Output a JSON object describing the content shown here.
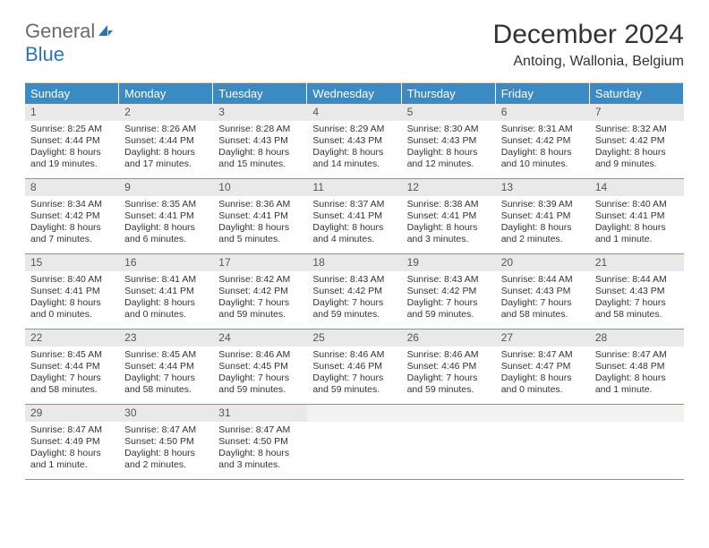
{
  "logo": {
    "general": "General",
    "blue": "Blue"
  },
  "title": "December 2024",
  "location": "Antoing, Wallonia, Belgium",
  "colors": {
    "header_bg": "#3b8ac4",
    "header_text": "#ffffff",
    "daynum_bg": "#e9e9e9",
    "row_divider": "#6b9bc2",
    "logo_blue": "#2e74b5",
    "text": "#333333",
    "background": "#ffffff"
  },
  "days_of_week": [
    "Sunday",
    "Monday",
    "Tuesday",
    "Wednesday",
    "Thursday",
    "Friday",
    "Saturday"
  ],
  "weeks": [
    [
      {
        "n": "1",
        "sr": "Sunrise: 8:25 AM",
        "ss": "Sunset: 4:44 PM",
        "dl1": "Daylight: 8 hours",
        "dl2": "and 19 minutes."
      },
      {
        "n": "2",
        "sr": "Sunrise: 8:26 AM",
        "ss": "Sunset: 4:44 PM",
        "dl1": "Daylight: 8 hours",
        "dl2": "and 17 minutes."
      },
      {
        "n": "3",
        "sr": "Sunrise: 8:28 AM",
        "ss": "Sunset: 4:43 PM",
        "dl1": "Daylight: 8 hours",
        "dl2": "and 15 minutes."
      },
      {
        "n": "4",
        "sr": "Sunrise: 8:29 AM",
        "ss": "Sunset: 4:43 PM",
        "dl1": "Daylight: 8 hours",
        "dl2": "and 14 minutes."
      },
      {
        "n": "5",
        "sr": "Sunrise: 8:30 AM",
        "ss": "Sunset: 4:43 PM",
        "dl1": "Daylight: 8 hours",
        "dl2": "and 12 minutes."
      },
      {
        "n": "6",
        "sr": "Sunrise: 8:31 AM",
        "ss": "Sunset: 4:42 PM",
        "dl1": "Daylight: 8 hours",
        "dl2": "and 10 minutes."
      },
      {
        "n": "7",
        "sr": "Sunrise: 8:32 AM",
        "ss": "Sunset: 4:42 PM",
        "dl1": "Daylight: 8 hours",
        "dl2": "and 9 minutes."
      }
    ],
    [
      {
        "n": "8",
        "sr": "Sunrise: 8:34 AM",
        "ss": "Sunset: 4:42 PM",
        "dl1": "Daylight: 8 hours",
        "dl2": "and 7 minutes."
      },
      {
        "n": "9",
        "sr": "Sunrise: 8:35 AM",
        "ss": "Sunset: 4:41 PM",
        "dl1": "Daylight: 8 hours",
        "dl2": "and 6 minutes."
      },
      {
        "n": "10",
        "sr": "Sunrise: 8:36 AM",
        "ss": "Sunset: 4:41 PM",
        "dl1": "Daylight: 8 hours",
        "dl2": "and 5 minutes."
      },
      {
        "n": "11",
        "sr": "Sunrise: 8:37 AM",
        "ss": "Sunset: 4:41 PM",
        "dl1": "Daylight: 8 hours",
        "dl2": "and 4 minutes."
      },
      {
        "n": "12",
        "sr": "Sunrise: 8:38 AM",
        "ss": "Sunset: 4:41 PM",
        "dl1": "Daylight: 8 hours",
        "dl2": "and 3 minutes."
      },
      {
        "n": "13",
        "sr": "Sunrise: 8:39 AM",
        "ss": "Sunset: 4:41 PM",
        "dl1": "Daylight: 8 hours",
        "dl2": "and 2 minutes."
      },
      {
        "n": "14",
        "sr": "Sunrise: 8:40 AM",
        "ss": "Sunset: 4:41 PM",
        "dl1": "Daylight: 8 hours",
        "dl2": "and 1 minute."
      }
    ],
    [
      {
        "n": "15",
        "sr": "Sunrise: 8:40 AM",
        "ss": "Sunset: 4:41 PM",
        "dl1": "Daylight: 8 hours",
        "dl2": "and 0 minutes."
      },
      {
        "n": "16",
        "sr": "Sunrise: 8:41 AM",
        "ss": "Sunset: 4:41 PM",
        "dl1": "Daylight: 8 hours",
        "dl2": "and 0 minutes."
      },
      {
        "n": "17",
        "sr": "Sunrise: 8:42 AM",
        "ss": "Sunset: 4:42 PM",
        "dl1": "Daylight: 7 hours",
        "dl2": "and 59 minutes."
      },
      {
        "n": "18",
        "sr": "Sunrise: 8:43 AM",
        "ss": "Sunset: 4:42 PM",
        "dl1": "Daylight: 7 hours",
        "dl2": "and 59 minutes."
      },
      {
        "n": "19",
        "sr": "Sunrise: 8:43 AM",
        "ss": "Sunset: 4:42 PM",
        "dl1": "Daylight: 7 hours",
        "dl2": "and 59 minutes."
      },
      {
        "n": "20",
        "sr": "Sunrise: 8:44 AM",
        "ss": "Sunset: 4:43 PM",
        "dl1": "Daylight: 7 hours",
        "dl2": "and 58 minutes."
      },
      {
        "n": "21",
        "sr": "Sunrise: 8:44 AM",
        "ss": "Sunset: 4:43 PM",
        "dl1": "Daylight: 7 hours",
        "dl2": "and 58 minutes."
      }
    ],
    [
      {
        "n": "22",
        "sr": "Sunrise: 8:45 AM",
        "ss": "Sunset: 4:44 PM",
        "dl1": "Daylight: 7 hours",
        "dl2": "and 58 minutes."
      },
      {
        "n": "23",
        "sr": "Sunrise: 8:45 AM",
        "ss": "Sunset: 4:44 PM",
        "dl1": "Daylight: 7 hours",
        "dl2": "and 58 minutes."
      },
      {
        "n": "24",
        "sr": "Sunrise: 8:46 AM",
        "ss": "Sunset: 4:45 PM",
        "dl1": "Daylight: 7 hours",
        "dl2": "and 59 minutes."
      },
      {
        "n": "25",
        "sr": "Sunrise: 8:46 AM",
        "ss": "Sunset: 4:46 PM",
        "dl1": "Daylight: 7 hours",
        "dl2": "and 59 minutes."
      },
      {
        "n": "26",
        "sr": "Sunrise: 8:46 AM",
        "ss": "Sunset: 4:46 PM",
        "dl1": "Daylight: 7 hours",
        "dl2": "and 59 minutes."
      },
      {
        "n": "27",
        "sr": "Sunrise: 8:47 AM",
        "ss": "Sunset: 4:47 PM",
        "dl1": "Daylight: 8 hours",
        "dl2": "and 0 minutes."
      },
      {
        "n": "28",
        "sr": "Sunrise: 8:47 AM",
        "ss": "Sunset: 4:48 PM",
        "dl1": "Daylight: 8 hours",
        "dl2": "and 1 minute."
      }
    ],
    [
      {
        "n": "29",
        "sr": "Sunrise: 8:47 AM",
        "ss": "Sunset: 4:49 PM",
        "dl1": "Daylight: 8 hours",
        "dl2": "and 1 minute."
      },
      {
        "n": "30",
        "sr": "Sunrise: 8:47 AM",
        "ss": "Sunset: 4:50 PM",
        "dl1": "Daylight: 8 hours",
        "dl2": "and 2 minutes."
      },
      {
        "n": "31",
        "sr": "Sunrise: 8:47 AM",
        "ss": "Sunset: 4:50 PM",
        "dl1": "Daylight: 8 hours",
        "dl2": "and 3 minutes."
      },
      {
        "empty": true
      },
      {
        "empty": true
      },
      {
        "empty": true
      },
      {
        "empty": true
      }
    ]
  ]
}
